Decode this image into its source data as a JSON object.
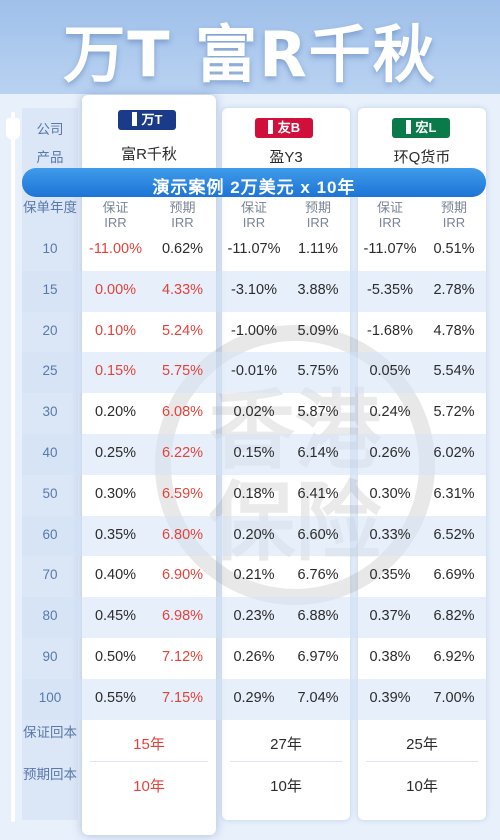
{
  "hero": {
    "title": "万T 富R千秋"
  },
  "labels": {
    "company": "公司",
    "product": "产品",
    "policy_year": "保单年度",
    "guaranteed_breakeven": "保证回本",
    "expected_breakeven": "预期回本"
  },
  "banner": "演示案例 2万美元 x 10年",
  "col_labels": {
    "guaranteed": "保证",
    "expected": "预期",
    "irr": "IRR"
  },
  "companies": [
    {
      "badge": "万T",
      "badge_color": "#1b3a8a",
      "product": "富R千秋"
    },
    {
      "badge": "友B",
      "badge_color": "#d0103a",
      "product": "盈Y3"
    },
    {
      "badge": "宏L",
      "badge_color": "#0a7a4a",
      "product": "环Q货币"
    }
  ],
  "years": [
    "10",
    "15",
    "20",
    "25",
    "30",
    "40",
    "50",
    "60",
    "70",
    "80",
    "90",
    "100"
  ],
  "rows": [
    [
      "-11.00%",
      "0.62%",
      "-11.07%",
      "1.11%",
      "-11.07%",
      "0.51%"
    ],
    [
      "0.00%",
      "4.33%",
      "-3.10%",
      "3.88%",
      "-5.35%",
      "2.78%"
    ],
    [
      "0.10%",
      "5.24%",
      "-1.00%",
      "5.09%",
      "-1.68%",
      "4.78%"
    ],
    [
      "0.15%",
      "5.75%",
      "-0.01%",
      "5.75%",
      "0.05%",
      "5.54%"
    ],
    [
      "0.20%",
      "6.08%",
      "0.02%",
      "5.87%",
      "0.24%",
      "5.72%"
    ],
    [
      "0.25%",
      "6.22%",
      "0.15%",
      "6.14%",
      "0.26%",
      "6.02%"
    ],
    [
      "0.30%",
      "6.59%",
      "0.18%",
      "6.41%",
      "0.30%",
      "6.31%"
    ],
    [
      "0.35%",
      "6.80%",
      "0.20%",
      "6.60%",
      "0.33%",
      "6.52%"
    ],
    [
      "0.40%",
      "6.90%",
      "0.21%",
      "6.76%",
      "0.35%",
      "6.69%"
    ],
    [
      "0.45%",
      "6.98%",
      "0.23%",
      "6.88%",
      "0.37%",
      "6.82%"
    ],
    [
      "0.50%",
      "7.12%",
      "0.26%",
      "6.97%",
      "0.38%",
      "6.92%"
    ],
    [
      "0.55%",
      "7.15%",
      "0.29%",
      "7.04%",
      "0.39%",
      "7.00%"
    ]
  ],
  "breakeven": {
    "guaranteed": [
      "15年",
      "27年",
      "25年"
    ],
    "expected": [
      "10年",
      "10年",
      "10年"
    ]
  },
  "watermark": {
    "line1": "香港",
    "line2": "保险"
  },
  "colors": {
    "highlight": "#e4433b",
    "accent": "#1d74d6"
  }
}
